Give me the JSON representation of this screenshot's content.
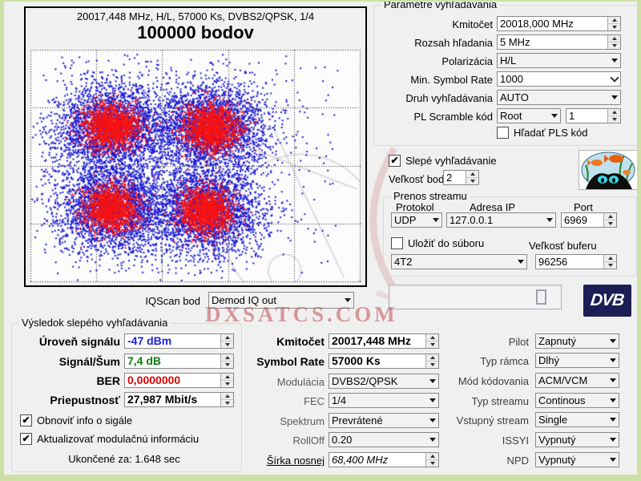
{
  "watermark": {
    "text": "DXSATCS.COM"
  },
  "constellation": {
    "header": "20017,448 MHz, H/L, 57000 Ks, DVBS2/QPSK, 1/4",
    "title": "100000 bodov"
  },
  "chart_data": {
    "type": "scatter",
    "title": "100000 bodov",
    "subtitle": "20017,448 MHz, H/L, 57000 Ks, DVBS2/QPSK, 1/4",
    "description": "DVB-S2 QPSK IQ constellation diagram: four red symbol clusters with blue noise halos",
    "total_points": 100000,
    "background": "#fcfcfc",
    "grid": {
      "cols": 5,
      "rows": 4,
      "line_style": "dotted",
      "color": "#222222"
    },
    "halo_color": "#1818d4",
    "core_color": "#f81212",
    "clusters": [
      {
        "cx": 0.245,
        "cy": 0.33
      },
      {
        "cx": 0.545,
        "cy": 0.335
      },
      {
        "cx": 0.245,
        "cy": 0.68
      },
      {
        "cx": 0.53,
        "cy": 0.69
      }
    ],
    "halo_sigma": {
      "x": 0.088,
      "y": 0.1
    },
    "core_sigma": {
      "x": 0.042,
      "y": 0.05
    },
    "halo_points_per_cluster": 2600,
    "core_points_per_cluster": 1400,
    "outlier_points": 220
  },
  "search": {
    "title": "Parametre vyhľadávania",
    "rows": [
      {
        "label": "Kmitočet",
        "value": "20018,000 MHz"
      },
      {
        "label": "Rozsah hľadania",
        "value": "5 MHz"
      },
      {
        "label": "Polarizácia",
        "value": "H/L"
      },
      {
        "label": "Min. Symbol Rate",
        "value": "1000"
      },
      {
        "label": "Druh vyhľadávania",
        "value": "AUTO"
      },
      {
        "label": "PL Scramble kód",
        "value": "Root",
        "code": "1"
      }
    ],
    "pls_checkbox": "Hľadať PLS kód"
  },
  "blind": {
    "checkbox": "Slepé vyhľadávanie",
    "dot_label": "Veľkosť bodu",
    "dot_value": "2"
  },
  "stream": {
    "title": "Prenos streamu",
    "protocol_header": "Protokol",
    "ip_header": "Adresa IP",
    "port_header": "Port",
    "protocol": "UDP",
    "ip": "127.0.0.1",
    "port": "6969",
    "save_checkbox": "Uložiť do súboru",
    "buffer_header": "Veľkosť buferu",
    "device": "4T2",
    "buffer": "96256"
  },
  "status": {
    "digit": "0",
    "logo": "DVB"
  },
  "iqscan": {
    "label": "IQScan bod",
    "value": "Demod IQ out"
  },
  "results": {
    "title": "Výsledok slepého vyhľadávania",
    "rows": [
      {
        "label": "Úroveň signálu",
        "value": "-47 dBm",
        "color": "#2020dd"
      },
      {
        "label": "Signál/Šum",
        "value": "7,4 dB",
        "color": "#0a7d0a"
      },
      {
        "label": "BER",
        "value": "0,0000000",
        "color": "#e00000"
      },
      {
        "label": "Priepustnosť",
        "value": "27,987 Mbit/s",
        "color": "#000000"
      }
    ],
    "refresh_checkbox": "Obnoviť info o sigále",
    "update_checkbox": "Aktualizovať modulačnú informáciu",
    "elapsed": "Ukončené za: 1.648 sec"
  },
  "tuning": {
    "rows": [
      {
        "label": "Kmitočet",
        "value": "20017,448 MHz"
      },
      {
        "label": "Symbol Rate",
        "value": "57000 Ks"
      },
      {
        "label": "Modulácia",
        "value": "DVBS2/QPSK"
      },
      {
        "label": "FEC",
        "value": "1/4"
      },
      {
        "label": "Spektrum",
        "value": "Prevrátené"
      },
      {
        "label": "RollOff",
        "value": "0.20"
      },
      {
        "label": "Šírka nosnej",
        "value": "68,400 MHz"
      }
    ]
  },
  "advanced": {
    "rows": [
      {
        "label": "Pilot",
        "value": "Zapnutý"
      },
      {
        "label": "Typ rámca",
        "value": "Dlhý"
      },
      {
        "label": "Mód kódovania",
        "value": "ACM/VCM"
      },
      {
        "label": "Typ streamu",
        "value": "Continous"
      },
      {
        "label": "Vstupný stream",
        "value": "Single"
      },
      {
        "label": "ISSYI",
        "value": "Vypnutý"
      },
      {
        "label": "NPD",
        "value": "Vypnutý"
      }
    ]
  },
  "colors": {
    "frame_green": "#cfe0a6",
    "window_bg": "#f0f0f0",
    "dvb_logo_bg": "#1d1d55",
    "watermark": "#bb3c44"
  }
}
